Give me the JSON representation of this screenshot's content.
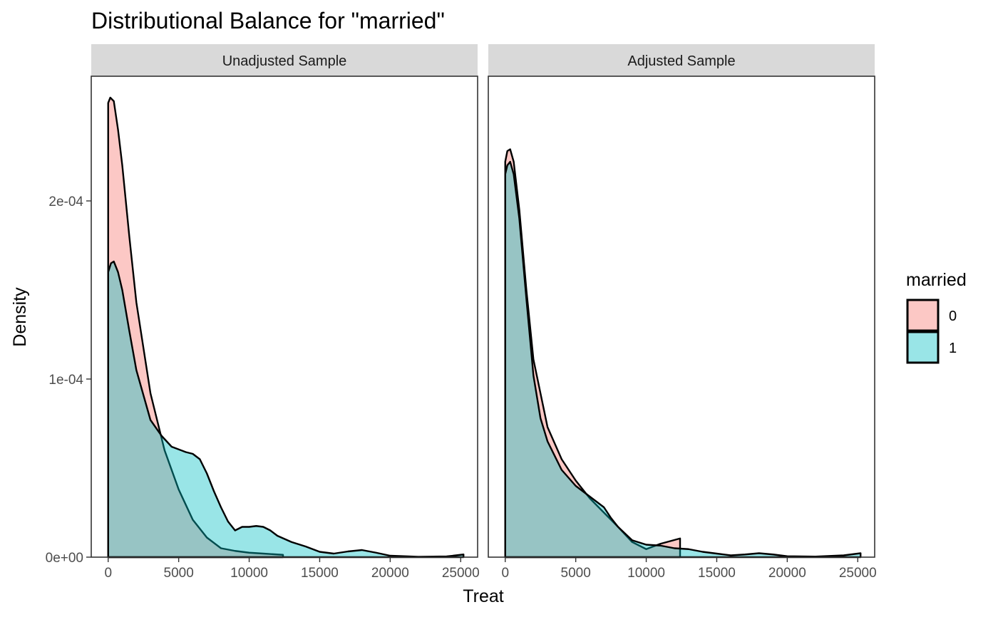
{
  "chart_data": {
    "type": "area",
    "title": "Distributional Balance for \"married\"",
    "xlabel": "Treat",
    "ylabel": "Density",
    "xlim": [
      -1200,
      26200
    ],
    "ylim": [
      0,
      0.00027
    ],
    "x_ticks": [
      0,
      5000,
      10000,
      15000,
      20000,
      25000
    ],
    "x_tick_labels": [
      "0",
      "5000",
      "10000",
      "15000",
      "20000",
      "25000"
    ],
    "y_ticks": [
      0,
      0.0001,
      0.0002
    ],
    "y_tick_labels": [
      "0e+00",
      "1e-04",
      "2e-04"
    ],
    "legend": {
      "title": "married",
      "placement": "right",
      "entries": [
        {
          "label": "0",
          "color": "#F8766D"
        },
        {
          "label": "1",
          "color": "#00BFC4"
        }
      ]
    },
    "panels": [
      {
        "strip": "Unadjusted Sample",
        "series": [
          {
            "group": "0",
            "color": "#F8766D",
            "x": [
              0,
              150,
              400,
              700,
              1000,
              1500,
              2000,
              3000,
              4000,
              5000,
              6000,
              7000,
              8000,
              9000,
              10000,
              11000,
              12400
            ],
            "y": [
              0.000255,
              0.000258,
              0.000256,
              0.00024,
              0.00022,
              0.00018,
              0.000143,
              9.2e-05,
              6e-05,
              3.8e-05,
              2.1e-05,
              1.1e-05,
              5e-06,
              3.5e-06,
              2.5e-06,
              2e-06,
              1.3e-06
            ]
          },
          {
            "group": "1",
            "color": "#00BFC4",
            "x": [
              0,
              200,
              400,
              700,
              1000,
              1500,
              2000,
              3000,
              3800,
              4500,
              5500,
              6000,
              6500,
              7000,
              7500,
              8000,
              8500,
              9000,
              9500,
              10000,
              10500,
              11000,
              11500,
              12000,
              13000,
              14000,
              15000,
              16000,
              17000,
              18000,
              19000,
              20000,
              22000,
              24000,
              25200
            ],
            "y": [
              0.00016,
              0.000165,
              0.000166,
              0.00016,
              0.00015,
              0.000127,
              0.000105,
              7.7e-05,
              6.8e-05,
              6.2e-05,
              5.9e-05,
              5.8e-05,
              5.5e-05,
              4.7e-05,
              3.7e-05,
              2.8e-05,
              2e-05,
              1.5e-05,
              1.7e-05,
              1.7e-05,
              1.75e-05,
              1.7e-05,
              1.5e-05,
              1.2e-05,
              8.5e-06,
              6e-06,
              3e-06,
              2e-06,
              3.2e-06,
              4e-06,
              2.5e-06,
              8e-07,
              2e-07,
              4e-07,
              1.5e-06
            ]
          }
        ]
      },
      {
        "strip": "Adjusted Sample",
        "series": [
          {
            "group": "0",
            "color": "#F8766D",
            "x": [
              0,
              150,
              350,
              600,
              1000,
              1500,
              2000,
              3000,
              4000,
              5000,
              5500,
              6000,
              7000,
              8000,
              9000,
              10000,
              11000,
              12400
            ],
            "y": [
              0.000222,
              0.000228,
              0.000229,
              0.000222,
              0.000195,
              0.00015,
              0.000111,
              7.3e-05,
              5.5e-05,
              4.3e-05,
              3.8e-05,
              3.3e-05,
              2.5e-05,
              1.7e-05,
              8.5e-06,
              4.5e-06,
              7.5e-06,
              1.05e-05
            ]
          },
          {
            "group": "1",
            "color": "#00BFC4",
            "x": [
              0,
              150,
              350,
              600,
              1000,
              1500,
              2000,
              2500,
              3000,
              4000,
              5000,
              5500,
              6000,
              6500,
              7000,
              7500,
              8000,
              9000,
              10000,
              11000,
              12000,
              13000,
              14000,
              15000,
              16000,
              17000,
              18000,
              19000,
              20000,
              22000,
              24000,
              25200
            ],
            "y": [
              0.000215,
              0.00022,
              0.000222,
              0.000215,
              0.00019,
              0.000145,
              0.000102,
              7.8e-05,
              6.5e-05,
              4.9e-05,
              4e-05,
              3.7e-05,
              3.4e-05,
              3.1e-05,
              2.8e-05,
              2.2e-05,
              1.7e-05,
              9.5e-06,
              7e-06,
              6.5e-06,
              5e-06,
              4.5e-06,
              3e-06,
              2e-06,
              1e-06,
              1.5e-06,
              2.2e-06,
              1.5e-06,
              5e-07,
              3e-07,
              1e-06,
              2.2e-06
            ]
          }
        ]
      }
    ]
  }
}
